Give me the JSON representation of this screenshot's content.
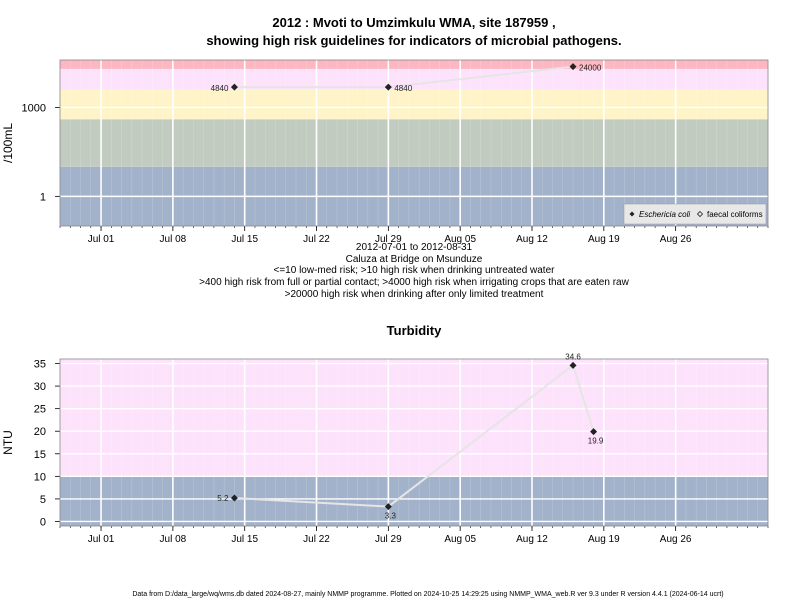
{
  "title": {
    "line1": "2012 : Mvoti to Umzimkulu WMA, site 187959 ,",
    "line2": "showing high risk guidelines for indicators of microbial pathogens."
  },
  "captions": [
    "2012-07-01 to 2012-08-31",
    "Caluza at Bridge on Msunduze",
    "<=10 low-med risk; >10 high risk when drinking untreated water",
    ">400 high risk from full or partial contact; >4000 high risk when irrigating crops that are eaten raw",
    ">20000 high risk when drinking after only limited treatment"
  ],
  "footer": "Data from D:/data_large/wq/wms.db dated 2024-08-27, mainly NMMP programme. Plotted on 2024-10-25 14:29:25 using NMMP_WMA_web.R ver 9.3 under R version 4.4.1 (2024-06-14 ucrt)",
  "colors": {
    "band_blue": "#a2b2cb",
    "band_sage": "#c2cbc0",
    "band_yellow": "#fef4c8",
    "band_pink": "#fde2fc",
    "band_red": "#fcb7c3",
    "line": "#e5e5e5",
    "grid": "#ffffff",
    "point": "#222222",
    "frame": "#888888"
  },
  "chart_data": [
    {
      "type": "line",
      "ylabel": "/100mL",
      "yscale": "log",
      "xlim": [
        "2012-06-27",
        "2012-09-04"
      ],
      "ylim": [
        0.1,
        40000
      ],
      "x_ticks": [
        "2012-07-01",
        "2012-07-08",
        "2012-07-15",
        "2012-07-22",
        "2012-07-29",
        "2012-08-05",
        "2012-08-12",
        "2012-08-19",
        "2012-08-26"
      ],
      "x_tick_labels": [
        "Jul 01",
        "Jul 08",
        "Jul 15",
        "Jul 22",
        "Jul 29",
        "Aug 05",
        "Aug 12",
        "Aug 19",
        "Aug 26"
      ],
      "y_ticks": [
        1,
        1000
      ],
      "y_tick_labels": [
        "1",
        "1000"
      ],
      "bands": [
        {
          "from": 0.1,
          "to": 10,
          "color": "band_blue"
        },
        {
          "from": 10,
          "to": 400,
          "color": "band_sage"
        },
        {
          "from": 400,
          "to": 4000,
          "color": "band_yellow"
        },
        {
          "from": 4000,
          "to": 20000,
          "color": "band_pink"
        },
        {
          "from": 20000,
          "to": 40000,
          "color": "band_red"
        }
      ],
      "legend_position": "bottom-right",
      "legend": [
        {
          "name": "Eschericia coli",
          "marker": "filled-diamond"
        },
        {
          "name": "faecal coliforms",
          "marker": "open-diamond"
        }
      ],
      "series": [
        {
          "name": "Eschericia coli",
          "points": [
            {
              "x": "2012-07-14",
              "y": 4840,
              "label": "4840"
            },
            {
              "x": "2012-07-29",
              "y": 4840,
              "label": "4840"
            },
            {
              "x": "2012-08-16",
              "y": 24000,
              "label": "24000"
            }
          ]
        }
      ]
    },
    {
      "type": "line",
      "title": "Turbidity",
      "ylabel": "NTU",
      "xlim": [
        "2012-06-27",
        "2012-09-04"
      ],
      "ylim": [
        -1,
        36
      ],
      "x_ticks": [
        "2012-07-01",
        "2012-07-08",
        "2012-07-15",
        "2012-07-22",
        "2012-07-29",
        "2012-08-05",
        "2012-08-12",
        "2012-08-19",
        "2012-08-26"
      ],
      "x_tick_labels": [
        "Jul 01",
        "Jul 08",
        "Jul 15",
        "Jul 22",
        "Jul 29",
        "Aug 05",
        "Aug 12",
        "Aug 19",
        "Aug 26"
      ],
      "y_ticks": [
        0,
        5,
        10,
        15,
        20,
        25,
        30,
        35
      ],
      "y_tick_labels": [
        "0",
        "5",
        "10",
        "15",
        "20",
        "25",
        "30",
        "35"
      ],
      "bands": [
        {
          "from": -1,
          "to": 10,
          "color": "band_blue"
        },
        {
          "from": 10,
          "to": 36,
          "color": "band_pink"
        }
      ],
      "series": [
        {
          "points": [
            {
              "x": "2012-07-14",
              "y": 5.2,
              "label": "5.2"
            },
            {
              "x": "2012-07-29",
              "y": 3.3,
              "label": "3.3"
            },
            {
              "x": "2012-08-16",
              "y": 34.6,
              "label": "34.6"
            },
            {
              "x": "2012-08-18",
              "y": 19.9,
              "label": "19.9"
            }
          ]
        }
      ]
    }
  ]
}
